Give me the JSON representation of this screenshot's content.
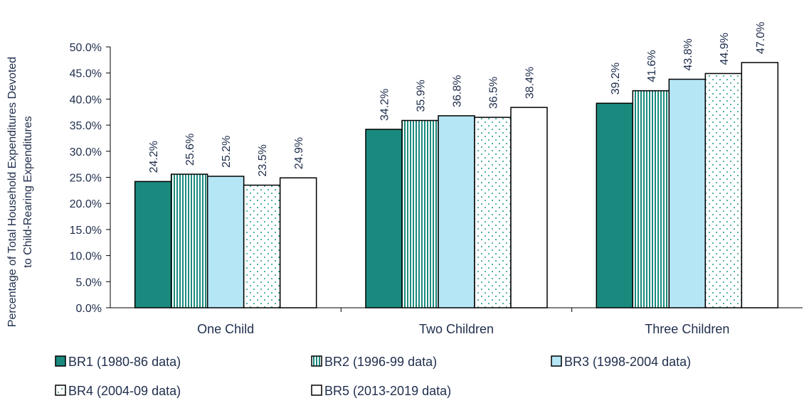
{
  "chart_data": {
    "type": "bar",
    "title": "",
    "ylabel_line1": "Percentage of Total Household Expenditures Devoted",
    "ylabel_line2": "to Child-Rearing Expenditures",
    "xlabel": "",
    "ylim": [
      0,
      50
    ],
    "y_ticks": [
      "0.0%",
      "5.0%",
      "10.0%",
      "15.0%",
      "20.0%",
      "25.0%",
      "30.0%",
      "35.0%",
      "40.0%",
      "45.0%",
      "50.0%"
    ],
    "categories": [
      "One Child",
      "Two Children",
      "Three Children"
    ],
    "series": [
      {
        "name": "BR1 (1980-86 data)",
        "values": [
          24.2,
          34.2,
          39.2
        ],
        "labels": [
          "24.2%",
          "34.2%",
          "39.2%"
        ],
        "fill": "teal"
      },
      {
        "name": "BR2 (1996-99 data)",
        "values": [
          25.6,
          35.9,
          41.6
        ],
        "labels": [
          "25.6%",
          "35.9%",
          "41.6%"
        ],
        "fill": "vertical-stripes"
      },
      {
        "name": "BR3 (1998-2004 data)",
        "values": [
          25.2,
          36.8,
          43.8
        ],
        "labels": [
          "25.2%",
          "36.8%",
          "43.8%"
        ],
        "fill": "light-blue"
      },
      {
        "name": "BR4 (2004-09 data)",
        "values": [
          23.5,
          36.5,
          44.9
        ],
        "labels": [
          "23.5%",
          "36.5%",
          "44.9%"
        ],
        "fill": "dotted"
      },
      {
        "name": "BR5 (2013-2019 data)",
        "values": [
          24.9,
          38.4,
          47.0
        ],
        "labels": [
          "24.9%",
          "38.4%",
          "47.0%"
        ],
        "fill": "white"
      }
    ],
    "grid": false,
    "legend_position": "bottom",
    "colors": {
      "teal": "#1a8a7e",
      "light_blue": "#b5e6f5",
      "dot": "#4fb3a6",
      "outline": "#000000",
      "text": "#1f2e4d"
    }
  }
}
